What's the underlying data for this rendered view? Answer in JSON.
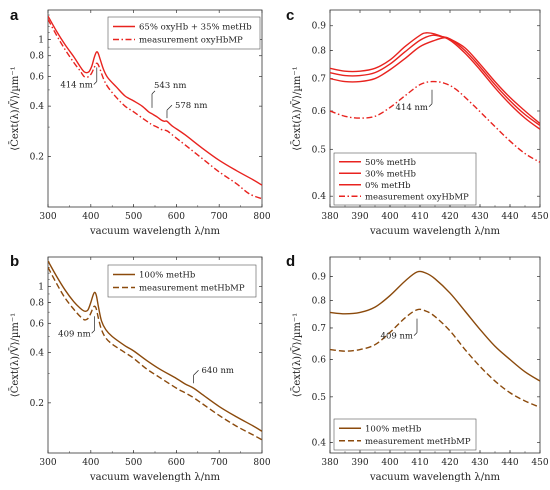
{
  "chart_data": [
    {
      "id": "a",
      "type": "line",
      "panel_letter": "a",
      "xlabel": "vacuum wavelength λ/nm",
      "ylabel": "⟨C̄ext(λ)/V̄⟩/µm⁻¹",
      "xscale": "linear",
      "yscale": "log",
      "xlim": [
        300,
        800
      ],
      "ylim": [
        0.1,
        1.5
      ],
      "xticks": [
        300,
        400,
        500,
        600,
        700,
        800
      ],
      "yticks": [
        0.2,
        0.4,
        0.6,
        0.8,
        1
      ],
      "ytick_labels": [
        "0.2",
        "0.4",
        "0.6",
        "0.8",
        "1"
      ],
      "legend_position": "top-right",
      "series": [
        {
          "name": "65% oxyHb + 35% metHb",
          "color": "#e8231f",
          "dash": "solid",
          "points": [
            [
              300,
              1.38
            ],
            [
              320,
              1.12
            ],
            [
              340,
              0.93
            ],
            [
              360,
              0.79
            ],
            [
              375,
              0.69
            ],
            [
              385,
              0.64
            ],
            [
              395,
              0.64
            ],
            [
              402,
              0.69
            ],
            [
              408,
              0.78
            ],
            [
              413,
              0.84
            ],
            [
              417,
              0.83
            ],
            [
              422,
              0.76
            ],
            [
              430,
              0.66
            ],
            [
              440,
              0.59
            ],
            [
              460,
              0.52
            ],
            [
              480,
              0.46
            ],
            [
              500,
              0.43
            ],
            [
              520,
              0.4
            ],
            [
              535,
              0.37
            ],
            [
              543,
              0.36
            ],
            [
              555,
              0.345
            ],
            [
              565,
              0.33
            ],
            [
              572,
              0.325
            ],
            [
              578,
              0.325
            ],
            [
              590,
              0.305
            ],
            [
              620,
              0.27
            ],
            [
              660,
              0.225
            ],
            [
              700,
              0.19
            ],
            [
              740,
              0.165
            ],
            [
              780,
              0.145
            ],
            [
              800,
              0.135
            ]
          ]
        },
        {
          "name": "measurement oxyHbMP",
          "color": "#e8231f",
          "dash": "dashdot",
          "points": [
            [
              300,
              1.32
            ],
            [
              320,
              1.06
            ],
            [
              340,
              0.87
            ],
            [
              360,
              0.73
            ],
            [
              375,
              0.65
            ],
            [
              385,
              0.6
            ],
            [
              395,
              0.6
            ],
            [
              402,
              0.63
            ],
            [
              408,
              0.68
            ],
            [
              413,
              0.72
            ],
            [
              417,
              0.71
            ],
            [
              422,
              0.66
            ],
            [
              430,
              0.58
            ],
            [
              440,
              0.52
            ],
            [
              460,
              0.45
            ],
            [
              480,
              0.4
            ],
            [
              500,
              0.37
            ],
            [
              520,
              0.34
            ],
            [
              535,
              0.32
            ],
            [
              543,
              0.31
            ],
            [
              555,
              0.3
            ],
            [
              565,
              0.29
            ],
            [
              578,
              0.285
            ],
            [
              590,
              0.27
            ],
            [
              620,
              0.235
            ],
            [
              660,
              0.195
            ],
            [
              700,
              0.162
            ],
            [
              740,
              0.138
            ],
            [
              770,
              0.12
            ],
            [
              800,
              0.112
            ]
          ]
        }
      ],
      "annotations": [
        {
          "text": "414 nm",
          "x": 414,
          "y": 0.7,
          "dir": "below-left"
        },
        {
          "text": "543 nm",
          "x": 543,
          "y": 0.38,
          "dir": "up"
        },
        {
          "text": "578 nm",
          "x": 578,
          "y": 0.33,
          "dir": "up-right"
        }
      ]
    },
    {
      "id": "b",
      "type": "line",
      "panel_letter": "b",
      "xlabel": "vacuum wavelength λ/nm",
      "ylabel": "⟨C̄ext(λ)/V̄⟩/µm⁻¹",
      "xscale": "linear",
      "yscale": "log",
      "xlim": [
        300,
        800
      ],
      "ylim": [
        0.1,
        1.5
      ],
      "xticks": [
        300,
        400,
        500,
        600,
        700,
        800
      ],
      "yticks": [
        0.2,
        0.4,
        0.6,
        0.8,
        1
      ],
      "ytick_labels": [
        "0.2",
        "0.4",
        "0.6",
        "0.8",
        "1"
      ],
      "legend_position": "top-right",
      "series": [
        {
          "name": "100% metHb",
          "color": "#8b4a0c",
          "dash": "solid",
          "points": [
            [
              300,
              1.42
            ],
            [
              320,
              1.15
            ],
            [
              340,
              0.95
            ],
            [
              360,
              0.81
            ],
            [
              375,
              0.74
            ],
            [
              385,
              0.71
            ],
            [
              393,
              0.72
            ],
            [
              400,
              0.8
            ],
            [
              405,
              0.88
            ],
            [
              409,
              0.92
            ],
            [
              413,
              0.88
            ],
            [
              418,
              0.75
            ],
            [
              425,
              0.62
            ],
            [
              435,
              0.55
            ],
            [
              450,
              0.5
            ],
            [
              480,
              0.44
            ],
            [
              500,
              0.41
            ],
            [
              530,
              0.36
            ],
            [
              560,
              0.32
            ],
            [
              600,
              0.28
            ],
            [
              620,
              0.26
            ],
            [
              640,
              0.245
            ],
            [
              660,
              0.225
            ],
            [
              700,
              0.19
            ],
            [
              740,
              0.165
            ],
            [
              780,
              0.145
            ],
            [
              800,
              0.135
            ]
          ]
        },
        {
          "name": "measurement metHbMP",
          "color": "#8b4a0c",
          "dash": "dashed",
          "points": [
            [
              300,
              1.3
            ],
            [
              320,
              1.04
            ],
            [
              340,
              0.85
            ],
            [
              360,
              0.73
            ],
            [
              375,
              0.66
            ],
            [
              385,
              0.63
            ],
            [
              393,
              0.64
            ],
            [
              400,
              0.69
            ],
            [
              405,
              0.74
            ],
            [
              409,
              0.76
            ],
            [
              413,
              0.73
            ],
            [
              418,
              0.64
            ],
            [
              425,
              0.55
            ],
            [
              435,
              0.49
            ],
            [
              450,
              0.45
            ],
            [
              480,
              0.4
            ],
            [
              500,
              0.37
            ],
            [
              530,
              0.32
            ],
            [
              560,
              0.285
            ],
            [
              600,
              0.245
            ],
            [
              620,
              0.23
            ],
            [
              640,
              0.215
            ],
            [
              660,
              0.198
            ],
            [
              700,
              0.168
            ],
            [
              740,
              0.145
            ],
            [
              780,
              0.128
            ],
            [
              800,
              0.12
            ]
          ]
        }
      ],
      "annotations": [
        {
          "text": "409 nm",
          "x": 409,
          "y": 0.68,
          "dir": "below-left"
        },
        {
          "text": "640 nm",
          "x": 640,
          "y": 0.255,
          "dir": "up-right"
        }
      ]
    },
    {
      "id": "c",
      "type": "line",
      "panel_letter": "c",
      "xlabel": "vacuum wavelength λ/nm",
      "ylabel": "⟨C̄ext(λ)/V̄⟩/µm⁻¹",
      "xscale": "linear",
      "yscale": "log",
      "xlim": [
        380,
        450
      ],
      "ylim": [
        0.38,
        0.97
      ],
      "xticks": [
        380,
        390,
        400,
        410,
        420,
        430,
        440,
        450
      ],
      "yticks": [
        0.4,
        0.5,
        0.6,
        0.7,
        0.8,
        0.9
      ],
      "ytick_labels": [
        "0.4",
        "0.5",
        "0.6",
        "0.7",
        "0.8",
        "0.9"
      ],
      "legend_position": "bottom-left",
      "series": [
        {
          "name": "50% metHb",
          "color": "#e8231f",
          "dash": "solid",
          "points": [
            [
              380,
              0.735
            ],
            [
              385,
              0.725
            ],
            [
              390,
              0.725
            ],
            [
              395,
              0.735
            ],
            [
              400,
              0.765
            ],
            [
              405,
              0.815
            ],
            [
              410,
              0.86
            ],
            [
              412,
              0.87
            ],
            [
              415,
              0.865
            ],
            [
              420,
              0.84
            ],
            [
              425,
              0.79
            ],
            [
              430,
              0.73
            ],
            [
              435,
              0.67
            ],
            [
              440,
              0.62
            ],
            [
              445,
              0.58
            ],
            [
              450,
              0.55
            ]
          ]
        },
        {
          "name": "30% metHb",
          "color": "#e8231f",
          "dash": "solid",
          "points": [
            [
              380,
              0.72
            ],
            [
              385,
              0.71
            ],
            [
              390,
              0.71
            ],
            [
              395,
              0.72
            ],
            [
              400,
              0.75
            ],
            [
              405,
              0.795
            ],
            [
              410,
              0.84
            ],
            [
              414,
              0.86
            ],
            [
              417,
              0.855
            ],
            [
              420,
              0.845
            ],
            [
              425,
              0.8
            ],
            [
              430,
              0.74
            ],
            [
              435,
              0.68
            ],
            [
              440,
              0.63
            ],
            [
              445,
              0.59
            ],
            [
              450,
              0.56
            ]
          ]
        },
        {
          "name": "0% metHb",
          "color": "#e8231f",
          "dash": "solid",
          "points": [
            [
              380,
              0.7
            ],
            [
              385,
              0.69
            ],
            [
              390,
              0.69
            ],
            [
              395,
              0.7
            ],
            [
              400,
              0.73
            ],
            [
              405,
              0.77
            ],
            [
              410,
              0.815
            ],
            [
              415,
              0.84
            ],
            [
              418,
              0.85
            ],
            [
              420,
              0.845
            ],
            [
              425,
              0.81
            ],
            [
              430,
              0.75
            ],
            [
              435,
              0.69
            ],
            [
              440,
              0.64
            ],
            [
              445,
              0.6
            ],
            [
              450,
              0.565
            ]
          ]
        },
        {
          "name": "measurement oxyHbMP",
          "color": "#e8231f",
          "dash": "dashdot",
          "points": [
            [
              380,
              0.6
            ],
            [
              385,
              0.585
            ],
            [
              390,
              0.58
            ],
            [
              395,
              0.585
            ],
            [
              400,
              0.61
            ],
            [
              405,
              0.645
            ],
            [
              410,
              0.68
            ],
            [
              414,
              0.69
            ],
            [
              418,
              0.685
            ],
            [
              422,
              0.665
            ],
            [
              428,
              0.615
            ],
            [
              434,
              0.565
            ],
            [
              440,
              0.52
            ],
            [
              445,
              0.49
            ],
            [
              450,
              0.47
            ]
          ]
        }
      ],
      "annotations": [
        {
          "text": "414 nm",
          "x": 414,
          "y": 0.67,
          "dir": "below-left"
        }
      ]
    },
    {
      "id": "d",
      "type": "line",
      "panel_letter": "d",
      "xlabel": "vacuum wavelength λ/nm",
      "ylabel": "⟨C̄ext(λ)/V̄⟩/µm⁻¹",
      "xscale": "linear",
      "yscale": "log",
      "xlim": [
        380,
        450
      ],
      "ylim": [
        0.38,
        0.99
      ],
      "xticks": [
        380,
        390,
        400,
        410,
        420,
        430,
        440,
        450
      ],
      "yticks": [
        0.4,
        0.5,
        0.6,
        0.7,
        0.8,
        0.9
      ],
      "ytick_labels": [
        "0.4",
        "0.5",
        "0.6",
        "0.7",
        "0.8",
        "0.9"
      ],
      "legend_position": "bottom-left",
      "series": [
        {
          "name": "100% metHb",
          "color": "#8b4a0c",
          "dash": "solid",
          "points": [
            [
              380,
              0.755
            ],
            [
              385,
              0.75
            ],
            [
              390,
              0.755
            ],
            [
              395,
              0.775
            ],
            [
              400,
              0.82
            ],
            [
              405,
              0.88
            ],
            [
              409,
              0.92
            ],
            [
              412,
              0.915
            ],
            [
              415,
              0.89
            ],
            [
              420,
              0.83
            ],
            [
              425,
              0.76
            ],
            [
              430,
              0.695
            ],
            [
              435,
              0.64
            ],
            [
              440,
              0.6
            ],
            [
              445,
              0.565
            ],
            [
              450,
              0.54
            ]
          ]
        },
        {
          "name": "measurement metHbMP",
          "color": "#8b4a0c",
          "dash": "dashed",
          "points": [
            [
              380,
              0.63
            ],
            [
              385,
              0.625
            ],
            [
              390,
              0.63
            ],
            [
              395,
              0.645
            ],
            [
              400,
              0.685
            ],
            [
              405,
              0.735
            ],
            [
              409,
              0.765
            ],
            [
              412,
              0.76
            ],
            [
              415,
              0.74
            ],
            [
              420,
              0.69
            ],
            [
              425,
              0.63
            ],
            [
              430,
              0.58
            ],
            [
              435,
              0.54
            ],
            [
              440,
              0.51
            ],
            [
              445,
              0.49
            ],
            [
              450,
              0.475
            ]
          ]
        }
      ],
      "annotations": [
        {
          "text": "409 nm",
          "x": 409,
          "y": 0.74,
          "dir": "below-left"
        }
      ]
    }
  ]
}
